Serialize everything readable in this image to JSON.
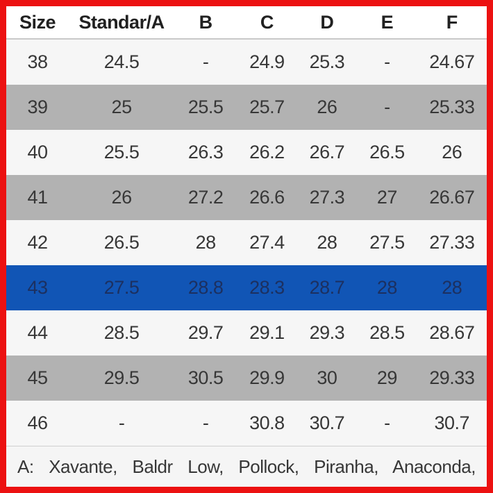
{
  "table": {
    "columns": [
      "Size",
      "Standar/A",
      "B",
      "C",
      "D",
      "E",
      "F"
    ],
    "rows": [
      {
        "size": "38",
        "values": [
          "24.5",
          "-",
          "24.9",
          "25.3",
          "-",
          "24.67"
        ],
        "style": "light"
      },
      {
        "size": "39",
        "values": [
          "25",
          "25.5",
          "25.7",
          "26",
          "-",
          "25.33"
        ],
        "style": "gray"
      },
      {
        "size": "40",
        "values": [
          "25.5",
          "26.3",
          "26.2",
          "26.7",
          "26.5",
          "26"
        ],
        "style": "light"
      },
      {
        "size": "41",
        "values": [
          "26",
          "27.2",
          "26.6",
          "27.3",
          "27",
          "26.67"
        ],
        "style": "gray"
      },
      {
        "size": "42",
        "values": [
          "26.5",
          "28",
          "27.4",
          "28",
          "27.5",
          "27.33"
        ],
        "style": "light"
      },
      {
        "size": "43",
        "values": [
          "27.5",
          "28.8",
          "28.3",
          "28.7",
          "28",
          "28"
        ],
        "style": "selected"
      },
      {
        "size": "44",
        "values": [
          "28.5",
          "29.7",
          "29.1",
          "29.3",
          "28.5",
          "28.67"
        ],
        "style": "light"
      },
      {
        "size": "45",
        "values": [
          "29.5",
          "30.5",
          "29.9",
          "30",
          "29",
          "29.33"
        ],
        "style": "gray"
      },
      {
        "size": "46",
        "values": [
          "-",
          "-",
          "30.8",
          "30.7",
          "-",
          "30.7"
        ],
        "style": "light"
      }
    ],
    "selected_size": "43"
  },
  "footnote": {
    "text": "A: Xavante, Baldr Low, Pollock, Piranha, Anaconda,"
  },
  "colors": {
    "border_red": "#ec1111",
    "row_light": "#f6f6f6",
    "row_gray": "#b2b2b2",
    "row_selected": "#1155b5"
  }
}
